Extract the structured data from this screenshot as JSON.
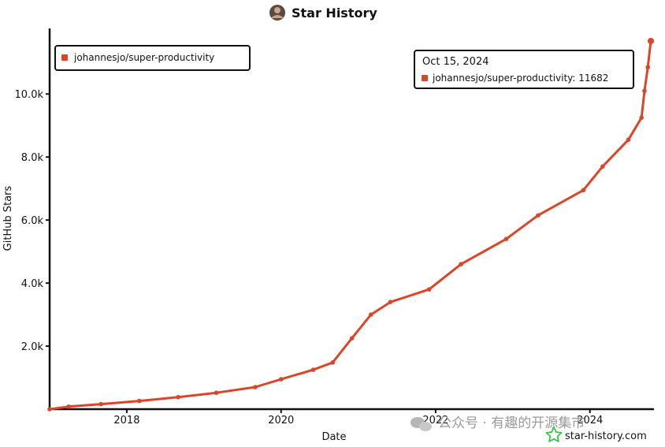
{
  "chart_data": {
    "type": "line",
    "title": "Star History",
    "xlabel": "Date",
    "ylabel": "GitHub Stars",
    "xlim": [
      "2017-01-01",
      "2024-10-15"
    ],
    "ylim": [
      0,
      11682
    ],
    "x_ticks": [
      "2018",
      "2020",
      "2022",
      "2024"
    ],
    "y_ticks": [
      "2.0k",
      "4.0k",
      "6.0k",
      "8.0k",
      "10.0k"
    ],
    "y_tick_values": [
      2000,
      4000,
      6000,
      8000,
      10000
    ],
    "grid": false,
    "legend_position": "top-left",
    "series": [
      {
        "name": "johannesjo/super-productivity",
        "color": "#dd4528",
        "points": [
          [
            "2017-01-01",
            0
          ],
          [
            "2017-04-01",
            80
          ],
          [
            "2017-09-01",
            160
          ],
          [
            "2018-03-01",
            260
          ],
          [
            "2018-09-01",
            380
          ],
          [
            "2019-03-01",
            520
          ],
          [
            "2019-09-01",
            700
          ],
          [
            "2020-01-01",
            950
          ],
          [
            "2020-06-01",
            1250
          ],
          [
            "2020-09-01",
            1480
          ],
          [
            "2020-12-01",
            2250
          ],
          [
            "2021-03-01",
            3000
          ],
          [
            "2021-06-01",
            3400
          ],
          [
            "2021-12-01",
            3800
          ],
          [
            "2022-05-01",
            4600
          ],
          [
            "2022-12-01",
            5400
          ],
          [
            "2023-05-01",
            6150
          ],
          [
            "2023-12-01",
            6950
          ],
          [
            "2024-03-01",
            7700
          ],
          [
            "2024-07-01",
            8550
          ],
          [
            "2024-09-01",
            9250
          ],
          [
            "2024-09-15",
            10100
          ],
          [
            "2024-10-01",
            10850
          ],
          [
            "2024-10-15",
            11682
          ]
        ]
      }
    ],
    "tooltip": {
      "date": "Oct 15, 2024",
      "label": "johannesjo/super-productivity: 11682"
    }
  },
  "brand": "star-history.com",
  "watermark": "公众号 · 有趣的开源集市",
  "colors": {
    "series": "#dd4528",
    "axis": "#111111",
    "brand_star": "#2ecc40"
  }
}
